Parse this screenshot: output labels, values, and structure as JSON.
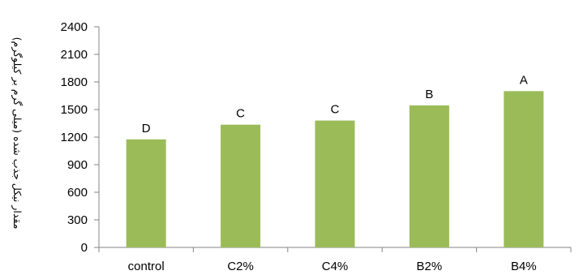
{
  "chart_data": {
    "type": "bar",
    "categories": [
      "control",
      "C2%",
      "C4%",
      "B2%",
      "B4%"
    ],
    "values": [
      1175,
      1335,
      1380,
      1545,
      1700
    ],
    "data_labels": [
      "D",
      "C",
      "C",
      "B",
      "A"
    ],
    "ylabel": "مقدار نیکل جذب شده (میلی گرم بر کیلوگرم)",
    "xlabel": "",
    "ylim": [
      0,
      2400
    ],
    "yticks": [
      0,
      300,
      600,
      900,
      1200,
      1500,
      1800,
      2100,
      2400
    ],
    "grid": false,
    "legend": "none",
    "bar_color": "#9BBB59",
    "axis_color": "#868686"
  }
}
